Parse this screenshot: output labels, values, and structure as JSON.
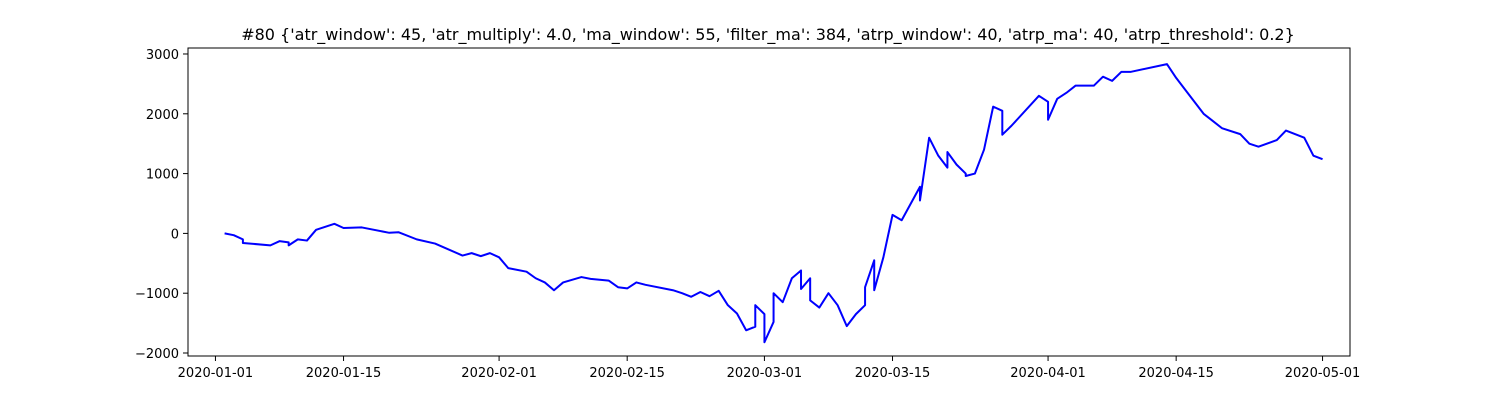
{
  "chart_data": {
    "type": "line",
    "title": "#80 {'atr_window': 45, 'atr_multiply': 4.0, 'ma_window': 55, 'filter_ma': 384, 'atrp_window': 40, 'atrp_ma': 40, 'atrp_threshold': 0.2}",
    "xlabel": "",
    "ylabel": "",
    "x_axis": "date",
    "xlim": [
      "2019-12-29",
      "2020-05-04"
    ],
    "ylim": [
      -2050,
      3100
    ],
    "grid": false,
    "x_ticks": [
      "2020-01-01",
      "2020-01-15",
      "2020-02-01",
      "2020-02-15",
      "2020-03-01",
      "2020-03-15",
      "2020-04-01",
      "2020-04-15",
      "2020-05-01"
    ],
    "y_ticks": [
      -2000,
      -1000,
      0,
      1000,
      2000,
      3000
    ],
    "series": [
      {
        "color": "#0000ff",
        "points": [
          [
            "2020-01-02",
            0
          ],
          [
            "2020-01-03",
            -30
          ],
          [
            "2020-01-04",
            -100
          ],
          [
            "2020-01-04",
            -160
          ],
          [
            "2020-01-07",
            -200
          ],
          [
            "2020-01-08",
            -130
          ],
          [
            "2020-01-09",
            -150
          ],
          [
            "2020-01-09",
            -200
          ],
          [
            "2020-01-10",
            -100
          ],
          [
            "2020-01-11",
            -120
          ],
          [
            "2020-01-12",
            60
          ],
          [
            "2020-01-14",
            160
          ],
          [
            "2020-01-15",
            90
          ],
          [
            "2020-01-17",
            100
          ],
          [
            "2020-01-20",
            10
          ],
          [
            "2020-01-21",
            20
          ],
          [
            "2020-01-23",
            -100
          ],
          [
            "2020-01-25",
            -170
          ],
          [
            "2020-01-28",
            -370
          ],
          [
            "2020-01-29",
            -330
          ],
          [
            "2020-01-30",
            -380
          ],
          [
            "2020-01-31",
            -330
          ],
          [
            "2020-02-01",
            -400
          ],
          [
            "2020-02-02",
            -580
          ],
          [
            "2020-02-04",
            -640
          ],
          [
            "2020-02-05",
            -750
          ],
          [
            "2020-02-06",
            -820
          ],
          [
            "2020-02-07",
            -950
          ],
          [
            "2020-02-08",
            -820
          ],
          [
            "2020-02-10",
            -730
          ],
          [
            "2020-02-11",
            -760
          ],
          [
            "2020-02-13",
            -790
          ],
          [
            "2020-02-14",
            -900
          ],
          [
            "2020-02-15",
            -920
          ],
          [
            "2020-02-16",
            -820
          ],
          [
            "2020-02-17",
            -860
          ],
          [
            "2020-02-20",
            -950
          ],
          [
            "2020-02-21",
            -1000
          ],
          [
            "2020-02-22",
            -1060
          ],
          [
            "2020-02-23",
            -980
          ],
          [
            "2020-02-24",
            -1050
          ],
          [
            "2020-02-25",
            -960
          ],
          [
            "2020-02-26",
            -1200
          ],
          [
            "2020-02-27",
            -1340
          ],
          [
            "2020-02-28",
            -1620
          ],
          [
            "2020-02-29",
            -1560
          ],
          [
            "2020-02-29",
            -1200
          ],
          [
            "2020-03-01",
            -1350
          ],
          [
            "2020-03-01",
            -1820
          ],
          [
            "2020-03-02",
            -1480
          ],
          [
            "2020-03-02",
            -1000
          ],
          [
            "2020-03-03",
            -1150
          ],
          [
            "2020-03-04",
            -750
          ],
          [
            "2020-03-05",
            -620
          ],
          [
            "2020-03-05",
            -930
          ],
          [
            "2020-03-06",
            -750
          ],
          [
            "2020-03-06",
            -1120
          ],
          [
            "2020-03-07",
            -1240
          ],
          [
            "2020-03-08",
            -1000
          ],
          [
            "2020-03-09",
            -1200
          ],
          [
            "2020-03-10",
            -1550
          ],
          [
            "2020-03-11",
            -1350
          ],
          [
            "2020-03-12",
            -1200
          ],
          [
            "2020-03-12",
            -900
          ],
          [
            "2020-03-13",
            -450
          ],
          [
            "2020-03-13",
            -950
          ],
          [
            "2020-03-14",
            -400
          ],
          [
            "2020-03-15",
            310
          ],
          [
            "2020-03-16",
            220
          ],
          [
            "2020-03-17",
            500
          ],
          [
            "2020-03-18",
            780
          ],
          [
            "2020-03-18",
            550
          ],
          [
            "2020-03-19",
            1600
          ],
          [
            "2020-03-20",
            1300
          ],
          [
            "2020-03-21",
            1100
          ],
          [
            "2020-03-21",
            1360
          ],
          [
            "2020-03-22",
            1150
          ],
          [
            "2020-03-23",
            1000
          ],
          [
            "2020-03-23",
            960
          ],
          [
            "2020-03-24",
            1000
          ],
          [
            "2020-03-25",
            1400
          ],
          [
            "2020-03-26",
            2120
          ],
          [
            "2020-03-27",
            2050
          ],
          [
            "2020-03-27",
            1650
          ],
          [
            "2020-03-28",
            1800
          ],
          [
            "2020-03-31",
            2300
          ],
          [
            "2020-04-01",
            2200
          ],
          [
            "2020-04-01",
            1900
          ],
          [
            "2020-04-02",
            2250
          ],
          [
            "2020-04-03",
            2350
          ],
          [
            "2020-04-04",
            2470
          ],
          [
            "2020-04-06",
            2470
          ],
          [
            "2020-04-07",
            2620
          ],
          [
            "2020-04-08",
            2550
          ],
          [
            "2020-04-09",
            2700
          ],
          [
            "2020-04-10",
            2700
          ],
          [
            "2020-04-14",
            2830
          ],
          [
            "2020-04-15",
            2600
          ],
          [
            "2020-04-16",
            2400
          ],
          [
            "2020-04-18",
            2000
          ],
          [
            "2020-04-19",
            1880
          ],
          [
            "2020-04-20",
            1760
          ],
          [
            "2020-04-22",
            1660
          ],
          [
            "2020-04-23",
            1500
          ],
          [
            "2020-04-24",
            1450
          ],
          [
            "2020-04-26",
            1560
          ],
          [
            "2020-04-27",
            1720
          ],
          [
            "2020-04-29",
            1600
          ],
          [
            "2020-04-30",
            1300
          ],
          [
            "2020-05-01",
            1240
          ]
        ]
      }
    ]
  }
}
